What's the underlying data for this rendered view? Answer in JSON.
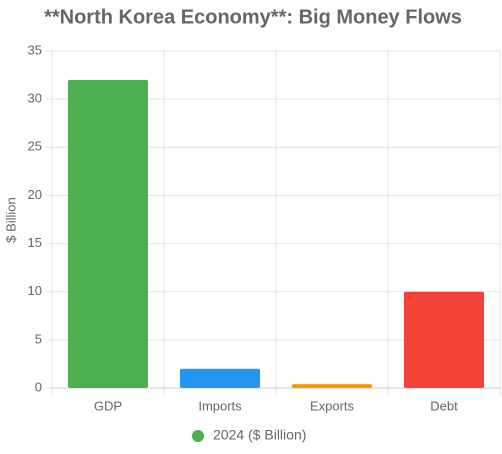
{
  "chart_data": {
    "type": "bar",
    "title": "**North Korea Economy**: Big Money Flows",
    "y_label": "$ Billion",
    "categories": [
      "GDP",
      "Imports",
      "Exports",
      "Debt"
    ],
    "series": [
      {
        "name": "2024 ($ Billion)",
        "color": "#4caf50",
        "colors": [
          "#4caf50",
          "#2196f3",
          "#ff9800",
          "#f44336"
        ],
        "values": [
          32,
          2,
          0.4,
          10
        ]
      }
    ],
    "ylim": [
      0,
      35
    ],
    "yticks": [
      0,
      5,
      10,
      15,
      20,
      25,
      30,
      35
    ],
    "grid": true,
    "legend": "bottom"
  }
}
